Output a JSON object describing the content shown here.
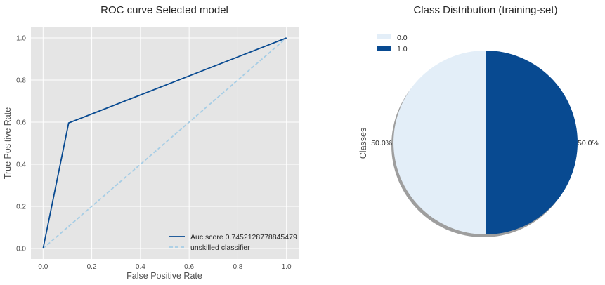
{
  "chart_data": [
    {
      "type": "line",
      "title": "ROC curve Selected model",
      "xlabel": "False Positive Rate",
      "ylabel": "True Positive Rate",
      "xlim": [
        -0.05,
        1.05
      ],
      "ylim": [
        -0.05,
        1.05
      ],
      "xticks": [
        0.0,
        0.2,
        0.4,
        0.6,
        0.8,
        1.0
      ],
      "xtick_labels": [
        "0.0",
        "0.2",
        "0.4",
        "0.6",
        "0.8",
        "1.0"
      ],
      "yticks": [
        0.0,
        0.2,
        0.4,
        0.6,
        0.8,
        1.0
      ],
      "ytick_labels": [
        "0.0",
        "0.2",
        "0.4",
        "0.6",
        "0.8",
        "1.0"
      ],
      "grid": true,
      "legend_position": "lower-right",
      "series": [
        {
          "name": "Auc score 0.7452128778845479",
          "color": "#084a91",
          "style": "solid",
          "x": [
            0.0,
            0.105,
            1.0
          ],
          "y": [
            0.0,
            0.596,
            1.0
          ]
        },
        {
          "name": "unskilled classifier",
          "color": "#a6cde5",
          "style": "dashed",
          "x": [
            0.0,
            1.0
          ],
          "y": [
            0.0,
            1.0
          ]
        }
      ]
    },
    {
      "type": "pie",
      "title": "Class Distribution (training-set)",
      "ylabel": "Classes",
      "legend_position": "top-left",
      "shadow": true,
      "slices": [
        {
          "label": "0.0",
          "value": 50.0,
          "pct_label": "50.0%",
          "color": "#e3eef8"
        },
        {
          "label": "1.0",
          "value": 50.0,
          "pct_label": "50.0%",
          "color": "#084a91"
        }
      ]
    }
  ]
}
